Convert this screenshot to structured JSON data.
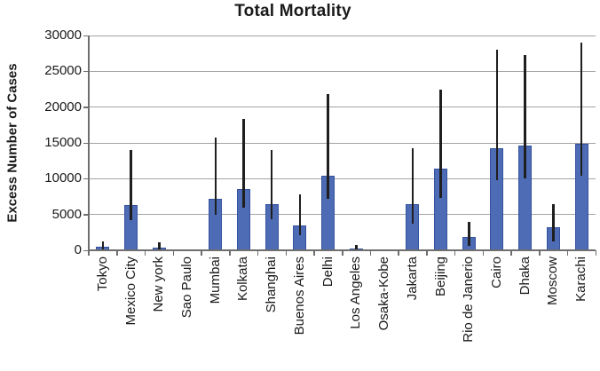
{
  "chart_data": {
    "type": "bar",
    "title": "Total Mortality",
    "ylabel": "Excess Number of Cases",
    "xlabel": "",
    "categories": [
      "Tokyo",
      "Mexico City",
      "New york",
      "Sao Paulo",
      "Mumbai",
      "Kolkata",
      "Shanghai",
      "Buenos Aires",
      "Delhi",
      "Los Angeles",
      "Osaka-Kobe",
      "Jakarta",
      "Beijing",
      "Rio de Janerio",
      "Cairo",
      "Dhaka",
      "Moscow",
      "Karachi"
    ],
    "values": [
      450,
      6300,
      400,
      100,
      7200,
      8500,
      6500,
      3500,
      10400,
      300,
      100,
      6400,
      11400,
      1800,
      14200,
      14600,
      3200,
      14900
    ],
    "error_low": [
      100,
      4200,
      100,
      null,
      5000,
      6000,
      4300,
      2100,
      7200,
      100,
      null,
      3700,
      7300,
      600,
      9800,
      10100,
      1200,
      10400
    ],
    "error_high": [
      1200,
      14000,
      1100,
      null,
      15700,
      18300,
      14000,
      7800,
      21800,
      800,
      null,
      14200,
      22400,
      4000,
      28000,
      27300,
      6500,
      29000
    ],
    "ylim": [
      0,
      30000
    ],
    "ytick_step": 5000,
    "yticks": [
      0,
      5000,
      10000,
      15000,
      20000,
      25000,
      30000
    ],
    "grid": "horizontal",
    "legend": "none",
    "bar_color": "#4d6cb5",
    "bar_border_color": "#35539e",
    "error_bar_color": "#1f1f1f",
    "gridline_color": "#a3a3a3",
    "axis_color": "#6e6e6e"
  }
}
